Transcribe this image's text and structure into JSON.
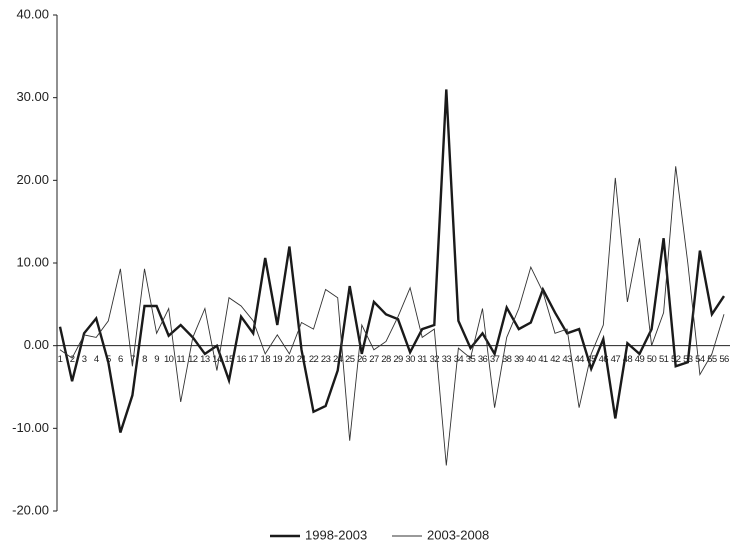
{
  "chart_data": {
    "type": "line",
    "categories": [
      "1",
      "2",
      "3",
      "4",
      "5",
      "6",
      "7",
      "8",
      "9",
      "10",
      "11",
      "12",
      "13",
      "14",
      "15",
      "16",
      "17",
      "18",
      "19",
      "20",
      "21",
      "22",
      "23",
      "24",
      "25",
      "26",
      "27",
      "28",
      "29",
      "30",
      "31",
      "32",
      "33",
      "34",
      "35",
      "36",
      "37",
      "38",
      "39",
      "40",
      "41",
      "42",
      "43",
      "44",
      "45",
      "46",
      "47",
      "48",
      "49",
      "50",
      "51",
      "52",
      "53",
      "54",
      "55",
      "56"
    ],
    "series": [
      {
        "name": "1998-2003",
        "color": "#1a1a1a",
        "values": [
          2.3,
          -4.3,
          1.5,
          3.3,
          -2,
          -10.5,
          -6,
          4.8,
          4.8,
          1.2,
          2.5,
          1,
          -1,
          0,
          -4.2,
          3.5,
          1.5,
          10.6,
          2.5,
          12,
          -0.5,
          -8,
          -7.3,
          -3,
          7.2,
          -1,
          5.3,
          3.8,
          3.2,
          -0.8,
          2,
          2.5,
          31,
          3,
          -0.3,
          1.5,
          -1,
          4.6,
          2,
          2.8,
          6.8,
          4,
          1.5,
          2,
          -2.8,
          0.8,
          -8.8,
          0.3,
          -1,
          2,
          13,
          -2.5,
          -2,
          11.5,
          3.8,
          6
        ]
      },
      {
        "name": "2003-2008",
        "color": "#333333",
        "values": [
          -0.5,
          -1.5,
          1.3,
          1,
          3,
          9.3,
          -2.5,
          9.3,
          1.5,
          4.5,
          -6.8,
          1,
          4.5,
          -3,
          5.8,
          4.8,
          3,
          -1,
          1.3,
          -1,
          2.8,
          2,
          6.8,
          5.8,
          -11.5,
          2.5,
          -0.5,
          0.5,
          3.5,
          7,
          1,
          2,
          -14.5,
          -0.3,
          -1.5,
          4.5,
          -7.5,
          1,
          4.5,
          9.5,
          6.5,
          1.5,
          2,
          -7.5,
          -1,
          2.5,
          20.3,
          5.3,
          13,
          0,
          4,
          21.7,
          10,
          -3.5,
          -1,
          3.8
        ]
      }
    ],
    "ylim": [
      -20,
      40
    ],
    "yticks": [
      {
        "value": -20,
        "label": "-20.00"
      },
      {
        "value": -10,
        "label": "-10.00"
      },
      {
        "value": 0,
        "label": "0.00"
      },
      {
        "value": 10,
        "label": "10.00"
      },
      {
        "value": 20,
        "label": "20.00"
      },
      {
        "value": 30,
        "label": "30.00"
      },
      {
        "value": 40,
        "label": "40.00"
      }
    ],
    "legend": "bottom"
  }
}
